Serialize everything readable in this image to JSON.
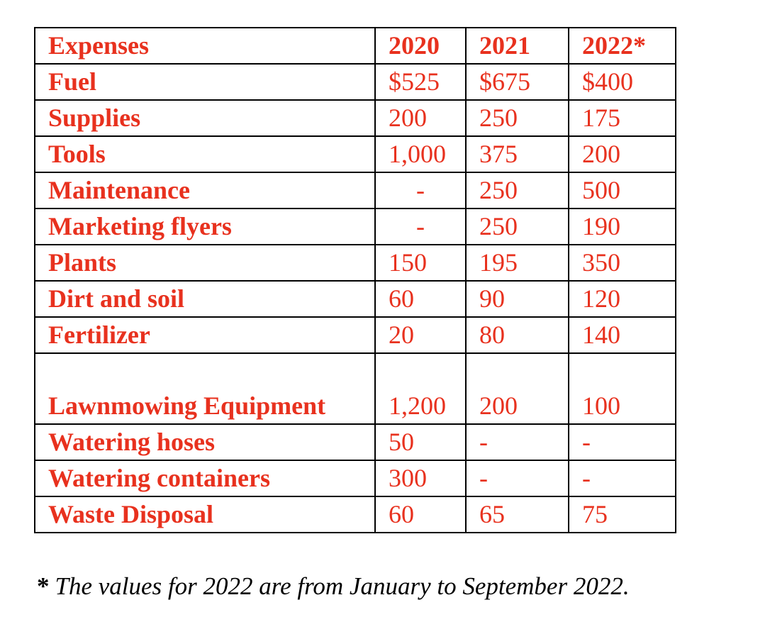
{
  "table": {
    "header": {
      "label": "Expenses",
      "years": [
        "2020",
        "2021",
        "2022*"
      ]
    },
    "rows": [
      {
        "label": "Fuel",
        "values": [
          "$525",
          "$675",
          "$400"
        ]
      },
      {
        "label": "Supplies",
        "values": [
          "200",
          "250",
          "175"
        ]
      },
      {
        "label": "Tools",
        "values": [
          "1,000",
          "375",
          "200"
        ]
      },
      {
        "label": "Maintenance",
        "values": [
          "-",
          "250",
          "500"
        ]
      },
      {
        "label": "Marketing flyers",
        "values": [
          "-",
          "250",
          "190"
        ]
      },
      {
        "label": "Plants",
        "values": [
          "150",
          "195",
          "350"
        ]
      },
      {
        "label": "Dirt and soil",
        "values": [
          "60",
          "90",
          "120"
        ]
      },
      {
        "label": "Fertilizer",
        "values": [
          "20",
          "80",
          "140"
        ]
      },
      {
        "label": "Lawnmowing Equipment",
        "values": [
          "1,200",
          "200",
          "100"
        ]
      },
      {
        "label": "Watering hoses",
        "values": [
          "50",
          "-",
          "-"
        ]
      },
      {
        "label": "Watering containers",
        "values": [
          "300",
          "-",
          "-"
        ]
      },
      {
        "label": "Waste Disposal",
        "values": [
          "60",
          "65",
          "75"
        ]
      }
    ]
  },
  "footnote": {
    "marker": "*",
    "text": "The values for 2022 are from January to September 2022."
  },
  "colors": {
    "text_red": "#e8311e",
    "border": "#000000"
  }
}
